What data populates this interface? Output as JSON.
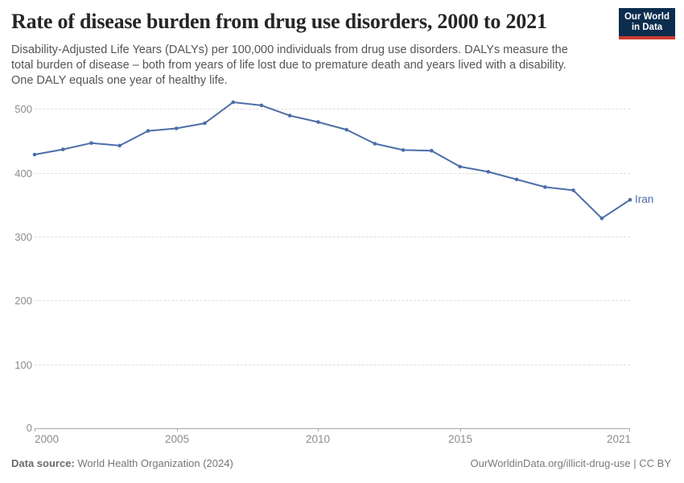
{
  "header": {
    "title": "Rate of disease burden from drug use disorders, 2000 to 2021",
    "subtitle_lines": [
      "Disability-Adjusted Life Years (DALYs) per 100,000 individuals from drug use disorders. DALYs measure the",
      "total burden of disease – both from years of life lost due to premature death and years lived with a disability.",
      "One DALY equals one year of healthy life."
    ],
    "logo": {
      "line1": "Our World",
      "line2": "in Data"
    }
  },
  "colors": {
    "accent_line": "#4c6ea8",
    "logo_navy": "#0d2d4e",
    "logo_red": "#d0382e",
    "grid_gray": "#dedede",
    "label_gray": "#8c8c8c"
  },
  "chart_data": {
    "type": "line",
    "title": "Rate of disease burden from drug use disorders, 2000 to 2021",
    "subtitle": "Disability-Adjusted Life Years (DALYs) per 100,000 individuals from drug use disorders. DALYs measure the total burden of disease – both from years of life lost due to premature death and years lived with a disability. One DALY equals one year of healthy life.",
    "xlabel": "",
    "ylabel": "",
    "xlim": [
      2000,
      2021
    ],
    "ylim": [
      0,
      535
    ],
    "grid": "horizontal-dashed",
    "legend": "end-of-line-label",
    "x": [
      2000,
      2001,
      2002,
      2003,
      2004,
      2005,
      2006,
      2007,
      2008,
      2009,
      2010,
      2011,
      2012,
      2013,
      2014,
      2015,
      2016,
      2017,
      2018,
      2019,
      2020,
      2021
    ],
    "series": [
      {
        "name": "Iran",
        "color": "#4c6ea8",
        "values": [
          429,
          437,
          447,
          443,
          466,
          470,
          478,
          511,
          506,
          490,
          480,
          468,
          446,
          436,
          435,
          410,
          402,
          390,
          378,
          373,
          329,
          358
        ]
      }
    ],
    "x_ticks": [
      "2000",
      "2005",
      "2010",
      "2015",
      "2021"
    ],
    "y_ticks": [
      "0",
      "100",
      "200",
      "300",
      "400",
      "500"
    ]
  },
  "footer": {
    "source_label": "Data source:",
    "source_value": " World Health Organization (2024)",
    "attribution": "OurWorldinData.org/illicit-drug-use | CC BY"
  }
}
